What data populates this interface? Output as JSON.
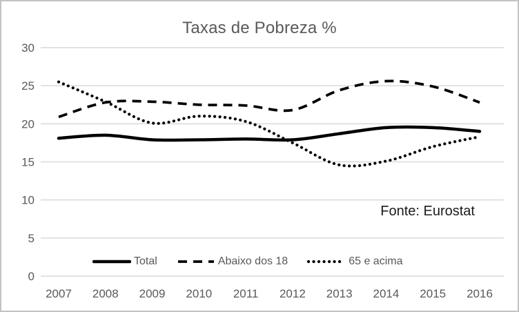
{
  "chart_data": {
    "type": "line",
    "title": "Taxas de Pobreza %",
    "source_note": "Fonte: Eurostat",
    "x": [
      2007,
      2008,
      2009,
      2010,
      2011,
      2012,
      2013,
      2014,
      2015,
      2016
    ],
    "series": [
      {
        "name": "Total",
        "line_style": "solid",
        "values": [
          18.1,
          18.5,
          17.9,
          17.9,
          18.0,
          17.9,
          18.7,
          19.5,
          19.5,
          19.0
        ]
      },
      {
        "name": "Abaixo dos 18",
        "line_style": "dashed",
        "values": [
          20.9,
          22.8,
          22.9,
          22.5,
          22.4,
          21.8,
          24.4,
          25.6,
          24.9,
          22.8
        ]
      },
      {
        "name": "65 e acima",
        "line_style": "dotted",
        "values": [
          25.5,
          22.9,
          20.1,
          21.0,
          20.3,
          17.5,
          14.6,
          15.1,
          17.0,
          18.3
        ]
      }
    ],
    "yticks": [
      0,
      5,
      10,
      15,
      20,
      25,
      30
    ],
    "ylim": [
      0,
      30
    ],
    "grid": "horizontal-only",
    "legend_position": "bottom-inside",
    "smooth_lines": true,
    "colors": {
      "series": "#000000",
      "axis_text": "#595959",
      "title_text": "#595959",
      "legend_text": "#595959",
      "source_text": "#1a1a1a",
      "gridline": "#d9d9d9",
      "frame_border": "#c3c3c3",
      "background": "#ffffff"
    }
  }
}
